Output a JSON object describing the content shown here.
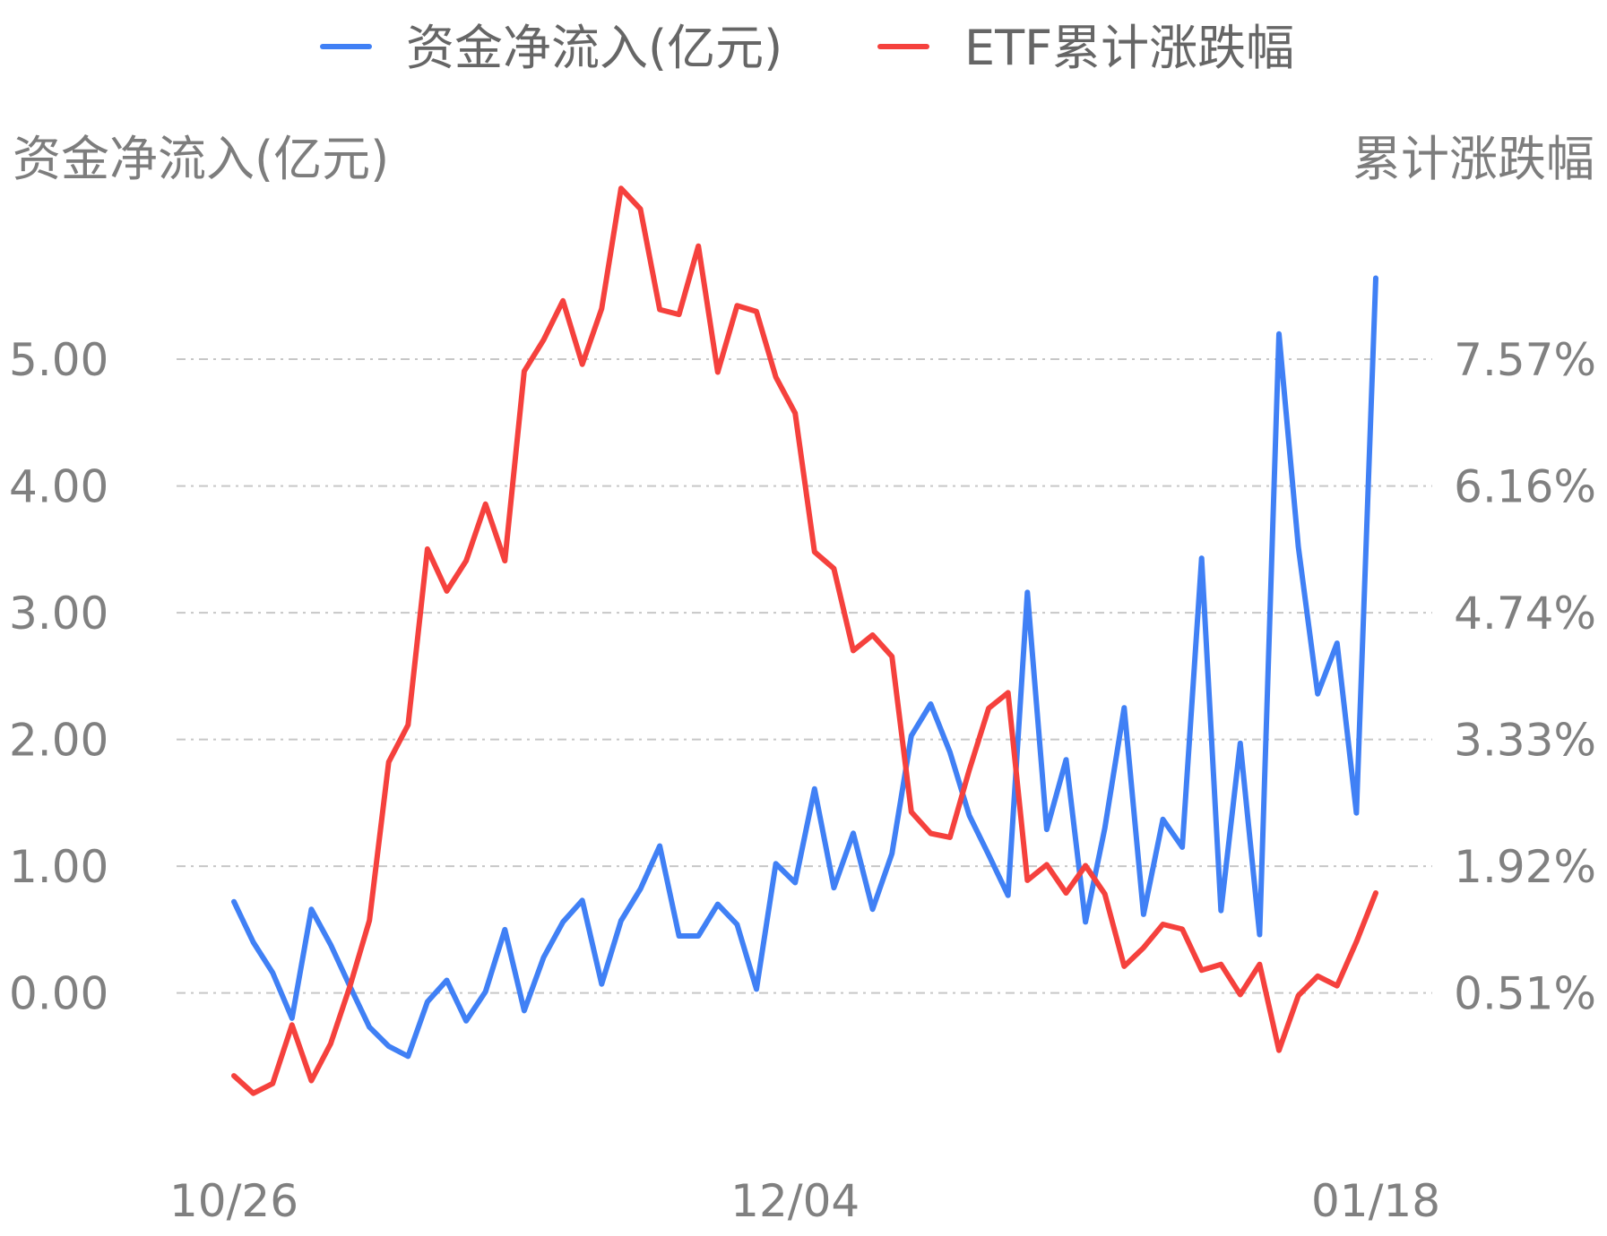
{
  "chart_data": {
    "type": "line",
    "legend_position": "top-center",
    "grid": true,
    "left_axis": {
      "title": "资金净流入(亿元)",
      "ticks": [
        "0.00",
        "1.00",
        "2.00",
        "3.00",
        "4.00",
        "5.00"
      ],
      "range": [
        -0.9,
        5.7
      ]
    },
    "right_axis": {
      "title": "累计涨跌幅",
      "ticks": [
        "0.51%",
        "1.92%",
        "3.33%",
        "4.74%",
        "6.16%",
        "7.57%"
      ],
      "range": [
        -0.38,
        8.18
      ]
    },
    "x_ticks": [
      "10/26",
      "12/04",
      "01/18"
    ],
    "series": [
      {
        "name": "资金净流入(亿元)",
        "color": "#4080f5",
        "axis": "left",
        "values": [
          0.72,
          0.4,
          0.16,
          -0.2,
          0.66,
          0.38,
          0.05,
          -0.27,
          -0.42,
          -0.5,
          -0.07,
          0.1,
          -0.22,
          0.01,
          0.5,
          -0.14,
          0.28,
          0.56,
          0.73,
          0.07,
          0.57,
          0.82,
          1.16,
          0.45,
          0.45,
          0.7,
          0.54,
          0.03,
          1.02,
          0.87,
          1.61,
          0.83,
          1.26,
          0.66,
          1.1,
          2.03,
          2.28,
          1.9,
          1.4,
          1.09,
          0.77,
          3.16,
          1.29,
          1.84,
          0.56,
          1.3,
          2.25,
          0.62,
          1.37,
          1.15,
          3.43,
          0.65,
          1.97,
          0.46,
          5.2,
          3.52,
          2.36,
          2.76,
          1.42,
          5.64
        ]
      },
      {
        "name": "ETF累计涨跌幅",
        "color": "#f5413d",
        "axis": "right",
        "values": [
          -0.06,
          -0.24,
          -0.14,
          0.46,
          -0.11,
          0.27,
          0.86,
          1.53,
          3.15,
          3.53,
          5.33,
          4.9,
          5.21,
          5.79,
          5.21,
          7.15,
          7.47,
          7.87,
          7.22,
          7.79,
          9.02,
          8.81,
          7.78,
          7.73,
          8.43,
          7.14,
          7.82,
          7.76,
          7.09,
          6.72,
          5.3,
          5.13,
          4.29,
          4.45,
          4.23,
          2.64,
          2.42,
          2.38,
          3.07,
          3.7,
          3.86,
          1.94,
          2.1,
          1.81,
          2.09,
          1.8,
          1.06,
          1.25,
          1.49,
          1.44,
          1.02,
          1.08,
          0.77,
          1.08,
          0.2,
          0.76,
          0.96,
          0.86,
          1.31,
          1.81
        ]
      }
    ]
  }
}
